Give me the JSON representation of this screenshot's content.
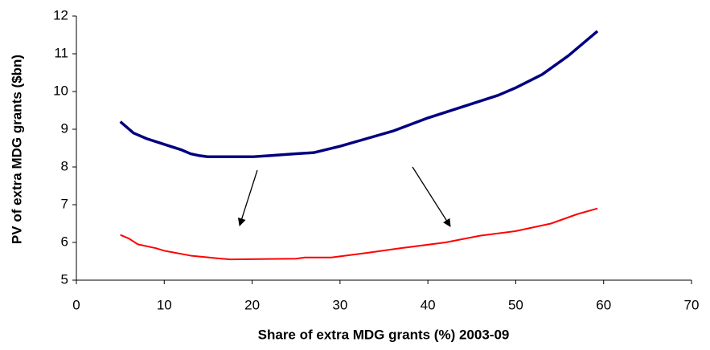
{
  "chart_data": {
    "type": "line",
    "x_label": "Share of extra MDG grants (%) 2003-09",
    "y_label": "PV of extra MDG grants ($bn)",
    "xlim": [
      0,
      70
    ],
    "xticks": [
      0,
      10,
      20,
      30,
      40,
      50,
      60,
      70
    ],
    "ylim": [
      5,
      12
    ],
    "yticks": [
      5,
      6,
      7,
      8,
      9,
      10,
      11,
      12
    ],
    "grid": false,
    "series": [
      {
        "color": "#000080",
        "width": 3.5,
        "x": [
          5,
          6.5,
          8,
          10,
          12,
          13,
          14,
          15,
          20,
          22,
          25,
          27,
          30,
          33,
          36,
          40,
          44,
          48,
          50,
          53,
          56,
          59.3
        ],
        "values": [
          9.2,
          8.9,
          8.75,
          8.6,
          8.45,
          8.35,
          8.3,
          8.27,
          8.27,
          8.3,
          8.35,
          8.38,
          8.55,
          8.75,
          8.95,
          9.3,
          9.6,
          9.9,
          10.1,
          10.45,
          10.95,
          11.6
        ]
      },
      {
        "color": "#ff0000",
        "width": 2,
        "x": [
          5,
          6,
          7,
          9,
          10,
          13,
          16,
          17.5,
          25,
          26,
          29,
          33,
          37,
          42,
          46,
          50,
          54,
          57,
          59.3
        ],
        "values": [
          6.2,
          6.1,
          5.95,
          5.85,
          5.78,
          5.65,
          5.58,
          5.55,
          5.57,
          5.6,
          5.6,
          5.72,
          5.85,
          6.0,
          6.18,
          6.3,
          6.5,
          6.75,
          6.9
        ]
      }
    ]
  }
}
